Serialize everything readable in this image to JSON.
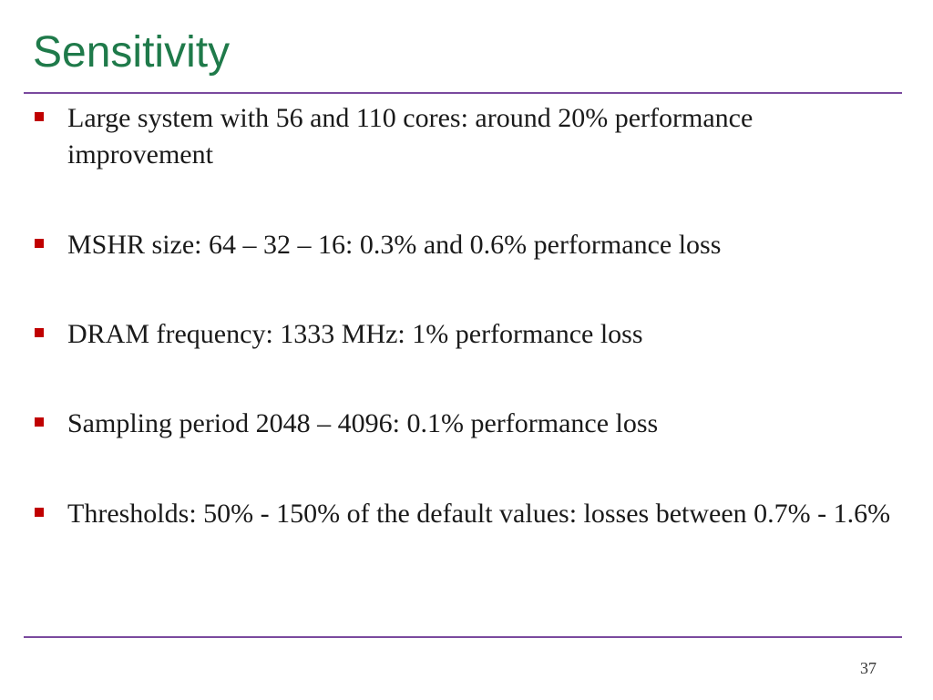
{
  "slide": {
    "title": "Sensitivity",
    "bullets": [
      {
        "text": "Large system with 56 and 110 cores: around 20% performance improvement"
      },
      {
        "text": "MSHR size: 64 – 32 – 16: 0.3% and 0.6% performance loss"
      },
      {
        "text": "DRAM frequency: 1333 MHz: 1% performance loss"
      },
      {
        "text": "Sampling period 2048 – 4096: 0.1% performance loss"
      },
      {
        "text": "Thresholds: 50% - 150% of the default values: losses between 0.7% - 1.6%"
      }
    ],
    "page_number": "37"
  },
  "colors": {
    "title": "#1f7a4a",
    "rule": "#7a4a9e",
    "bullet_marker": "#c00000",
    "text": "#1a1a1a"
  }
}
